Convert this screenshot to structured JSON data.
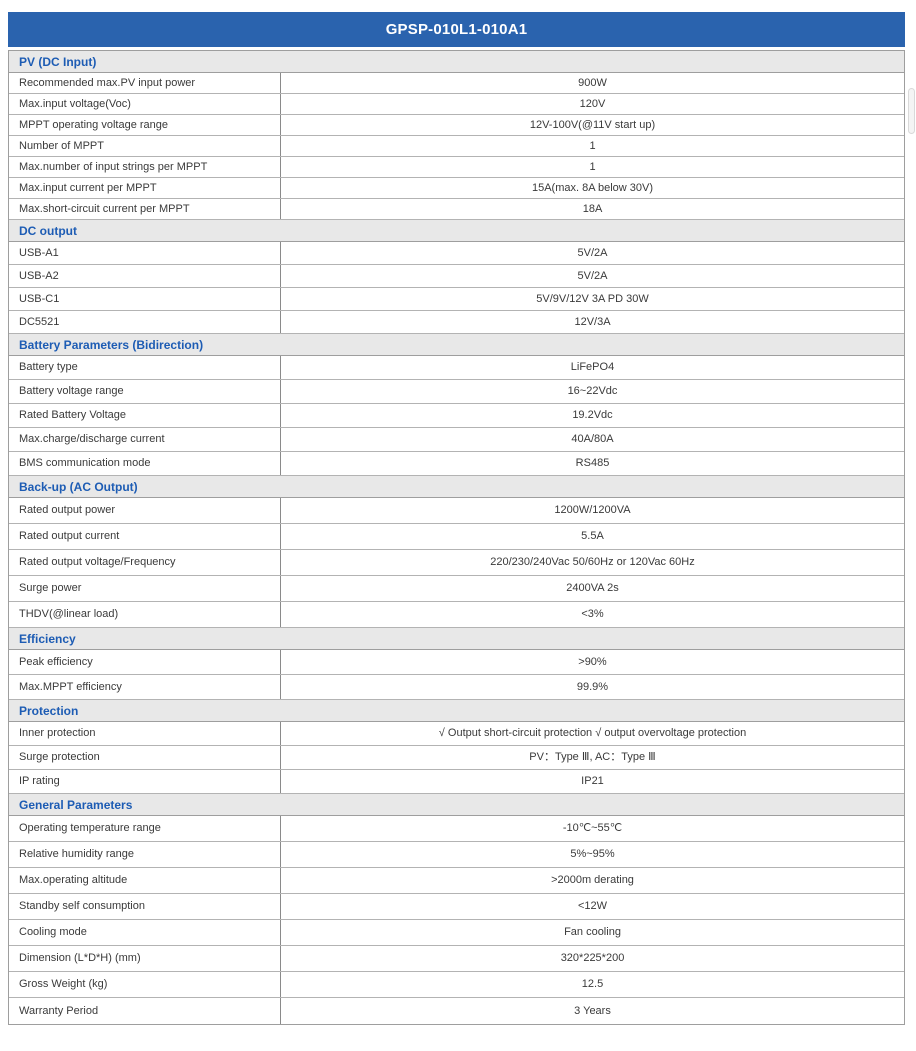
{
  "title": "GPSP-010L1-010A1",
  "colors": {
    "header_bg": "#2a63ae",
    "header_text": "#ffffff",
    "section_bg": "#e8e8e8",
    "section_text": "#1d5cb4",
    "border": "#9e9e9e",
    "text": "#3a3a3a"
  },
  "sections": [
    {
      "label": "PV (DC Input)",
      "rows": [
        {
          "label": "Recommended max.PV input power",
          "value": "900W"
        },
        {
          "label": "Max.input voltage(Voc)",
          "value": "120V"
        },
        {
          "label": "MPPT operating voltage range",
          "value": "12V-100V(@11V start up)"
        },
        {
          "label": "Number of MPPT",
          "value": "1"
        },
        {
          "label": "Max.number of input strings per MPPT",
          "value": "1"
        },
        {
          "label": "Max.input current per MPPT",
          "value": "15A(max. 8A below 30V)"
        },
        {
          "label": "Max.short-circuit current per MPPT",
          "value": "18A"
        }
      ]
    },
    {
      "label": "DC output",
      "rows": [
        {
          "label": "USB-A1",
          "value": "5V/2A"
        },
        {
          "label": "USB-A2",
          "value": "5V/2A"
        },
        {
          "label": "USB-C1",
          "value": "5V/9V/12V 3A PD 30W"
        },
        {
          "label": "DC5521",
          "value": "12V/3A"
        }
      ]
    },
    {
      "label": "Battery Parameters (Bidirection)",
      "rows": [
        {
          "label": "Battery type",
          "value": "LiFePO4"
        },
        {
          "label": "Battery voltage range",
          "value": "16~22Vdc"
        },
        {
          "label": "Rated Battery Voltage",
          "value": "19.2Vdc"
        },
        {
          "label": "Max.charge/discharge current",
          "value": "40A/80A"
        },
        {
          "label": "BMS communication mode",
          "value": "RS485"
        }
      ]
    },
    {
      "label": "Back-up (AC Output)",
      "rows": [
        {
          "label": "Rated output power",
          "value": "1200W/1200VA"
        },
        {
          "label": "Rated output current",
          "value": "5.5A"
        },
        {
          "label": "Rated output voltage/Frequency",
          "value": "220/230/240Vac 50/60Hz or 120Vac 60Hz"
        },
        {
          "label": "Surge power",
          "value": "2400VA 2s"
        },
        {
          "label": "THDV(@linear load)",
          "value": "<3%"
        }
      ]
    },
    {
      "label": "Efficiency",
      "rows": [
        {
          "label": "Peak efficiency",
          "value": ">90%"
        },
        {
          "label": "Max.MPPT efficiency",
          "value": "99.9%"
        }
      ]
    },
    {
      "label": "Protection",
      "rows": [
        {
          "label": "Inner protection",
          "value": "√ Output short-circuit protection √ output overvoltage protection"
        },
        {
          "label": "Surge protection",
          "value": "PV：Type Ⅲ, AC：Type Ⅲ"
        },
        {
          "label": "IP rating",
          "value": "IP21"
        }
      ]
    },
    {
      "label": "General Parameters",
      "rows": [
        {
          "label": "Operating temperature range",
          "value": "-10℃~55℃"
        },
        {
          "label": "Relative humidity range",
          "value": "5%~95%"
        },
        {
          "label": "Max.operating altitude",
          "value": ">2000m derating"
        },
        {
          "label": "Standby self consumption",
          "value": "<12W"
        },
        {
          "label": "Cooling mode",
          "value": "Fan cooling"
        },
        {
          "label": "Dimension (L*D*H) (mm)",
          "value": "320*225*200"
        },
        {
          "label": "Gross Weight (kg)",
          "value": "12.5"
        },
        {
          "label": "Warranty Period",
          "value": "3 Years"
        }
      ]
    }
  ]
}
